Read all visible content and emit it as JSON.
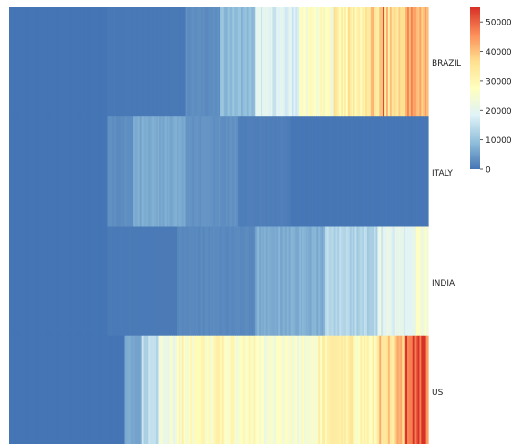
{
  "chart_data": {
    "type": "heatmap",
    "title": "",
    "xlabel": "",
    "ylabel": "",
    "x_ticks_shown": false,
    "rows": [
      "BRAZIL",
      "ITALY",
      "INDIA",
      "US"
    ],
    "n_columns": 240,
    "colorbar": {
      "min": 0,
      "max": 55000,
      "ticks": [
        0,
        10000,
        20000,
        30000,
        40000,
        50000
      ],
      "tick_labels": [
        "0",
        "10000",
        "20000",
        "30000",
        "40000",
        "50000"
      ],
      "colormap": "RdYlBu_r",
      "colors": [
        "#4575b4",
        "#91bfdb",
        "#e0f3f8",
        "#ffffbf",
        "#fee090",
        "#fc8d59",
        "#d73027"
      ]
    },
    "series": [
      {
        "name": "BRAZIL",
        "segments": [
          {
            "from": 0,
            "to": 55,
            "value": 0
          },
          {
            "from": 56,
            "to": 100,
            "value": 500
          },
          {
            "from": 101,
            "to": 120,
            "value": 3000
          },
          {
            "from": 121,
            "to": 140,
            "value": 9000
          },
          {
            "from": 141,
            "to": 165,
            "value": 18000
          },
          {
            "from": 166,
            "to": 185,
            "value": 26000
          },
          {
            "from": 186,
            "to": 205,
            "value": 32000
          },
          {
            "from": 206,
            "to": 225,
            "value": 36000
          },
          {
            "from": 226,
            "to": 239,
            "value": 42000
          }
        ],
        "spikes": [
          {
            "col": 214,
            "value": 55000
          }
        ]
      },
      {
        "name": "ITALY",
        "segments": [
          {
            "from": 0,
            "to": 55,
            "value": 0
          },
          {
            "from": 56,
            "to": 70,
            "value": 3000
          },
          {
            "from": 71,
            "to": 100,
            "value": 6500
          },
          {
            "from": 101,
            "to": 130,
            "value": 3500
          },
          {
            "from": 131,
            "to": 160,
            "value": 1200
          },
          {
            "from": 161,
            "to": 239,
            "value": 200
          }
        ]
      },
      {
        "name": "INDIA",
        "segments": [
          {
            "from": 0,
            "to": 55,
            "value": 0
          },
          {
            "from": 56,
            "to": 95,
            "value": 700
          },
          {
            "from": 96,
            "to": 140,
            "value": 2500
          },
          {
            "from": 141,
            "to": 180,
            "value": 7000
          },
          {
            "from": 181,
            "to": 210,
            "value": 13000
          },
          {
            "from": 211,
            "to": 232,
            "value": 19000
          },
          {
            "from": 233,
            "to": 239,
            "value": 24000
          }
        ]
      },
      {
        "name": "US",
        "segments": [
          {
            "from": 0,
            "to": 65,
            "value": 0
          },
          {
            "from": 66,
            "to": 75,
            "value": 6000
          },
          {
            "from": 76,
            "to": 85,
            "value": 14000
          },
          {
            "from": 86,
            "to": 95,
            "value": 22000
          },
          {
            "from": 96,
            "to": 140,
            "value": 28000
          },
          {
            "from": 141,
            "to": 175,
            "value": 25000
          },
          {
            "from": 176,
            "to": 210,
            "value": 30000
          },
          {
            "from": 211,
            "to": 226,
            "value": 38000
          },
          {
            "from": 227,
            "to": 239,
            "value": 50000
          }
        ]
      }
    ]
  }
}
